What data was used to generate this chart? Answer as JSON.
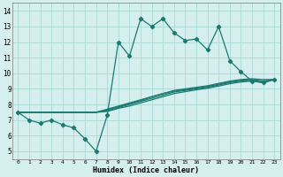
{
  "xlabel": "Humidex (Indice chaleur)",
  "xlim": [
    -0.5,
    23.5
  ],
  "ylim": [
    4.5,
    14.5
  ],
  "xticks": [
    0,
    1,
    2,
    3,
    4,
    5,
    6,
    7,
    8,
    9,
    10,
    11,
    12,
    13,
    14,
    15,
    16,
    17,
    18,
    19,
    20,
    21,
    22,
    23
  ],
  "yticks": [
    5,
    6,
    7,
    8,
    9,
    10,
    11,
    12,
    13,
    14
  ],
  "bg_color": "#d4efee",
  "grid_color": "#a8d8d5",
  "line_color": "#1a7a70",
  "main_x": [
    0,
    1,
    2,
    3,
    4,
    5,
    6,
    7,
    8,
    9,
    10,
    11,
    12,
    13,
    14,
    15,
    16,
    17,
    18,
    19,
    20,
    21,
    22,
    23
  ],
  "main_y": [
    7.5,
    7.0,
    6.8,
    7.0,
    6.7,
    6.5,
    5.8,
    5.0,
    7.3,
    12.0,
    11.1,
    13.5,
    13.0,
    13.5,
    12.6,
    12.1,
    12.2,
    11.5,
    13.0,
    10.8,
    10.1,
    9.5,
    9.4,
    9.6
  ],
  "trend_lines": [
    [
      7.5,
      7.5,
      7.5,
      7.5,
      7.5,
      7.5,
      7.5,
      7.5,
      7.7,
      7.9,
      8.1,
      8.3,
      8.5,
      8.7,
      8.9,
      9.0,
      9.1,
      9.2,
      9.35,
      9.5,
      9.6,
      9.65,
      9.6,
      9.6
    ],
    [
      7.5,
      7.5,
      7.5,
      7.5,
      7.5,
      7.5,
      7.5,
      7.5,
      7.65,
      7.85,
      8.05,
      8.25,
      8.5,
      8.7,
      8.85,
      8.95,
      9.05,
      9.15,
      9.3,
      9.45,
      9.55,
      9.6,
      9.5,
      9.6
    ],
    [
      7.5,
      7.5,
      7.5,
      7.5,
      7.5,
      7.5,
      7.5,
      7.5,
      7.6,
      7.8,
      8.0,
      8.2,
      8.4,
      8.6,
      8.8,
      8.9,
      9.0,
      9.1,
      9.25,
      9.4,
      9.5,
      9.55,
      9.45,
      9.6
    ],
    [
      7.5,
      7.5,
      7.5,
      7.5,
      7.5,
      7.5,
      7.5,
      7.5,
      7.55,
      7.75,
      7.9,
      8.1,
      8.3,
      8.5,
      8.7,
      8.82,
      8.94,
      9.04,
      9.18,
      9.33,
      9.44,
      9.5,
      9.4,
      9.6
    ]
  ]
}
